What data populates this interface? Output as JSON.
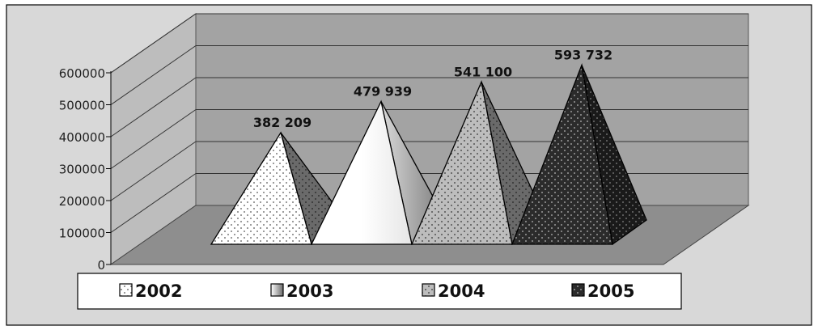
{
  "chart_data": {
    "type": "bar",
    "shape": "3d-pyramid",
    "categories": [
      "2002",
      "2003",
      "2004",
      "2005"
    ],
    "values": [
      382209,
      479939,
      541100,
      593732
    ],
    "data_labels": [
      "382 209",
      "479 939",
      "541 100",
      "593 732"
    ],
    "title": "",
    "xlabel": "",
    "ylabel": "",
    "ylim": [
      0,
      600000
    ],
    "y_ticks": [
      "0",
      "100000",
      "200000",
      "300000",
      "400000",
      "500000",
      "600000"
    ],
    "grid": true,
    "legend": "bottom",
    "legend_entries": [
      "2002",
      "2003",
      "2004",
      "2005"
    ],
    "colors": {
      "background": "#d8d8d8",
      "back_wall": "#a3a3a3",
      "side_wall": "#bdbdbd",
      "floor": "#8e8e8e",
      "series": [
        "#ffffff",
        "#d0d0d0",
        "#c8c8c8",
        "#2a2a2a"
      ]
    }
  }
}
